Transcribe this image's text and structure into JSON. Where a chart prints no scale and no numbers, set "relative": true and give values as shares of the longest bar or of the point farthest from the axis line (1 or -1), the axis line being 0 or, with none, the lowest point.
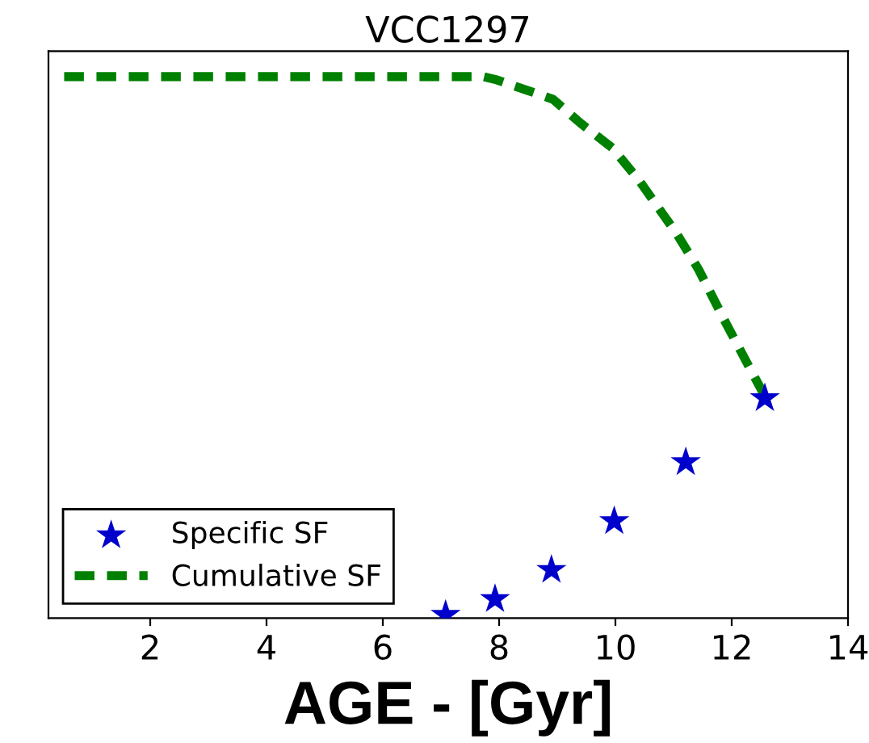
{
  "chart_data": {
    "type": "line",
    "title": "VCC1297",
    "xlabel": "AGE - [Gyr]",
    "relative": true,
    "xlim": [
      0.25,
      14
    ],
    "xticks": [
      2,
      4,
      6,
      8,
      10,
      12,
      14
    ],
    "tick_labels": "x",
    "grid": false,
    "legend": "bottom left",
    "series": [
      {
        "name": "Specific SF",
        "type": "scatter",
        "marker": "star",
        "color": "#0000cc",
        "x": [
          7.08,
          7.93,
          8.9,
          9.98,
          11.21,
          12.57
        ],
        "values": [
          0.006,
          0.035,
          0.089,
          0.179,
          0.288,
          0.406
        ]
      },
      {
        "name": "Cumulative SF",
        "line_style": "dashed",
        "color": "#008000",
        "x": [
          0.52,
          7.73,
          7.96,
          8.56,
          8.93,
          9.39,
          9.95,
          10.41,
          11.06,
          11.43,
          11.9,
          12.27,
          12.55
        ],
        "values": [
          1.0,
          1.0,
          0.994,
          0.972,
          0.958,
          0.915,
          0.868,
          0.808,
          0.709,
          0.644,
          0.545,
          0.47,
          0.414
        ]
      }
    ]
  }
}
